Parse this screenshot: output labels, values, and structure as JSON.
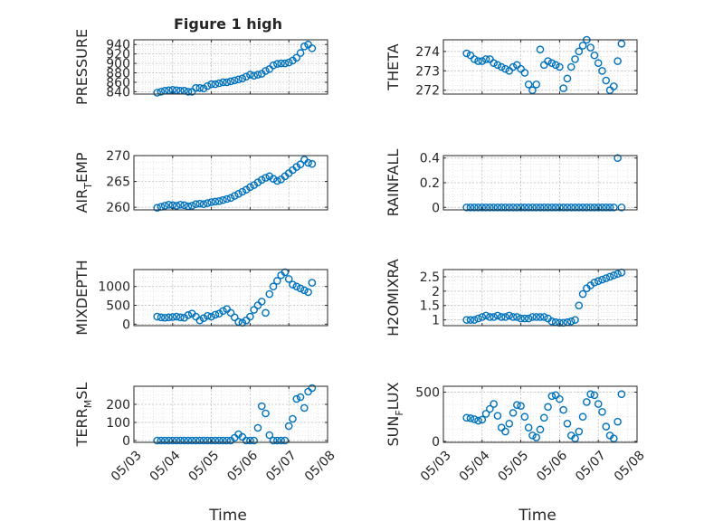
{
  "title": "Figure 1 high",
  "xlabel": "Time",
  "marker_color": "#0072BD",
  "chart_data": [
    {
      "type": "scatter",
      "id": "pressure",
      "ylabel_main": "PRESSURE",
      "ylabel_sub": "",
      "ylabel_tail": "",
      "ylim": [
        835,
        950
      ],
      "yticks": [
        840,
        860,
        880,
        900,
        920,
        940
      ],
      "ytick_labels": [
        "840",
        "860",
        "880",
        "900",
        "920",
        "940"
      ],
      "xlim": [
        0,
        5
      ],
      "xticks": [
        0,
        1,
        2,
        3,
        4,
        5
      ],
      "xtick_labels": [
        "05/03",
        "05/04",
        "05/05",
        "05/06",
        "05/07",
        "05/08"
      ],
      "x": [
        0.6,
        0.7,
        0.8,
        0.9,
        1.0,
        1.1,
        1.2,
        1.3,
        1.4,
        1.5,
        1.6,
        1.7,
        1.8,
        1.9,
        2.0,
        2.1,
        2.2,
        2.3,
        2.4,
        2.5,
        2.6,
        2.7,
        2.8,
        2.9,
        3.0,
        3.1,
        3.2,
        3.3,
        3.4,
        3.5,
        3.6,
        3.7,
        3.8,
        3.9,
        4.0,
        4.1,
        4.2,
        4.3,
        4.4,
        4.5,
        4.6
      ],
      "y": [
        838,
        840,
        842,
        843,
        844,
        843,
        842,
        842,
        840,
        840,
        848,
        848,
        847,
        852,
        856,
        856,
        858,
        860,
        860,
        862,
        864,
        866,
        868,
        872,
        876,
        874,
        876,
        878,
        884,
        888,
        896,
        899,
        900,
        900,
        902,
        906,
        912,
        922,
        936,
        940,
        932
      ]
    },
    {
      "type": "scatter",
      "id": "theta",
      "ylabel_main": "THETA",
      "ylabel_sub": "",
      "ylabel_tail": "",
      "ylim": [
        271.8,
        274.6
      ],
      "yticks": [
        272,
        273,
        274
      ],
      "ytick_labels": [
        "272",
        "273",
        "274"
      ],
      "xlim": [
        0,
        5
      ],
      "xticks": [
        0,
        1,
        2,
        3,
        4,
        5
      ],
      "xtick_labels": [
        "05/03",
        "05/04",
        "05/05",
        "05/06",
        "05/07",
        "05/08"
      ],
      "x": [
        0.6,
        0.7,
        0.8,
        0.9,
        1.0,
        1.1,
        1.2,
        1.3,
        1.4,
        1.5,
        1.6,
        1.7,
        1.8,
        1.9,
        2.0,
        2.1,
        2.2,
        2.3,
        2.4,
        2.5,
        2.6,
        2.7,
        2.8,
        2.9,
        3.0,
        3.1,
        3.2,
        3.3,
        3.4,
        3.5,
        3.6,
        3.7,
        3.8,
        3.9,
        4.0,
        4.1,
        4.2,
        4.3,
        4.4,
        4.5,
        4.6
      ],
      "y": [
        273.9,
        273.8,
        273.6,
        273.5,
        273.5,
        273.6,
        273.6,
        273.4,
        273.3,
        273.2,
        273.1,
        273.0,
        273.2,
        273.3,
        273.1,
        272.9,
        272.3,
        272.0,
        272.3,
        274.1,
        273.3,
        273.5,
        273.4,
        273.3,
        273.2,
        272.1,
        272.6,
        273.2,
        273.6,
        274.0,
        274.3,
        274.6,
        274.2,
        273.8,
        273.4,
        273.0,
        272.5,
        272.0,
        272.2,
        273.5,
        274.4
      ]
    },
    {
      "type": "scatter",
      "id": "air_temp",
      "ylabel_main": "AIR",
      "ylabel_sub": "T",
      "ylabel_tail": "EMP",
      "ylim": [
        259.5,
        270
      ],
      "yticks": [
        260,
        265,
        270
      ],
      "ytick_labels": [
        "260",
        "265",
        "270"
      ],
      "xlim": [
        0,
        5
      ],
      "xticks": [
        0,
        1,
        2,
        3,
        4,
        5
      ],
      "xtick_labels": [
        "05/03",
        "05/04",
        "05/05",
        "05/06",
        "05/07",
        "05/08"
      ],
      "x": [
        0.6,
        0.7,
        0.8,
        0.9,
        1.0,
        1.1,
        1.2,
        1.3,
        1.4,
        1.5,
        1.6,
        1.7,
        1.8,
        1.9,
        2.0,
        2.1,
        2.2,
        2.3,
        2.4,
        2.5,
        2.6,
        2.7,
        2.8,
        2.9,
        3.0,
        3.1,
        3.2,
        3.3,
        3.4,
        3.5,
        3.6,
        3.7,
        3.8,
        3.9,
        4.0,
        4.1,
        4.2,
        4.3,
        4.4,
        4.5,
        4.6
      ],
      "y": [
        259.9,
        260.1,
        260.3,
        260.5,
        260.4,
        260.3,
        260.5,
        260.4,
        260.2,
        260.3,
        260.6,
        260.7,
        260.6,
        260.8,
        261.0,
        261.1,
        261.2,
        261.4,
        261.6,
        261.8,
        262.2,
        262.6,
        263.0,
        263.4,
        263.9,
        264.3,
        264.8,
        265.3,
        265.7,
        266.0,
        265.5,
        265.1,
        265.4,
        266.0,
        266.6,
        267.2,
        267.8,
        268.3,
        269.2,
        268.6,
        268.4
      ]
    },
    {
      "type": "scatter",
      "id": "rainfall",
      "ylabel_main": "RAINFALL",
      "ylabel_sub": "",
      "ylabel_tail": "",
      "ylim": [
        -0.02,
        0.42
      ],
      "yticks": [
        0,
        0.2,
        0.4
      ],
      "ytick_labels": [
        "0",
        "0.2",
        "0.4"
      ],
      "xlim": [
        0,
        5
      ],
      "xticks": [
        0,
        1,
        2,
        3,
        4,
        5
      ],
      "xtick_labels": [
        "05/03",
        "05/04",
        "05/05",
        "05/06",
        "05/07",
        "05/08"
      ],
      "x": [
        0.6,
        0.7,
        0.8,
        0.9,
        1.0,
        1.1,
        1.2,
        1.3,
        1.4,
        1.5,
        1.6,
        1.7,
        1.8,
        1.9,
        2.0,
        2.1,
        2.2,
        2.3,
        2.4,
        2.5,
        2.6,
        2.7,
        2.8,
        2.9,
        3.0,
        3.1,
        3.2,
        3.3,
        3.4,
        3.5,
        3.6,
        3.7,
        3.8,
        3.9,
        4.0,
        4.1,
        4.2,
        4.3,
        4.4,
        4.5,
        4.6
      ],
      "y": [
        0,
        0,
        0,
        0,
        0,
        0,
        0,
        0,
        0,
        0,
        0,
        0,
        0,
        0,
        0,
        0,
        0,
        0,
        0,
        0,
        0,
        0,
        0,
        0,
        0,
        0,
        0,
        0,
        0,
        0,
        0,
        0,
        0,
        0,
        0,
        0,
        0,
        0,
        0,
        0.4,
        0
      ]
    },
    {
      "type": "scatter",
      "id": "mixdepth",
      "ylabel_main": "MIXDEPTH",
      "ylabel_sub": "",
      "ylabel_tail": "",
      "ylim": [
        -40,
        1450
      ],
      "yticks": [
        0,
        500,
        1000
      ],
      "ytick_labels": [
        "0",
        "500",
        "1000"
      ],
      "xlim": [
        0,
        5
      ],
      "xticks": [
        0,
        1,
        2,
        3,
        4,
        5
      ],
      "xtick_labels": [
        "05/03",
        "05/04",
        "05/05",
        "05/06",
        "05/07",
        "05/08"
      ],
      "x": [
        0.6,
        0.7,
        0.8,
        0.9,
        1.0,
        1.1,
        1.2,
        1.3,
        1.4,
        1.5,
        1.6,
        1.7,
        1.8,
        1.9,
        2.0,
        2.1,
        2.2,
        2.3,
        2.4,
        2.5,
        2.6,
        2.7,
        2.8,
        2.9,
        3.0,
        3.1,
        3.2,
        3.3,
        3.4,
        3.5,
        3.6,
        3.7,
        3.8,
        3.9,
        4.0,
        4.1,
        4.2,
        4.3,
        4.4,
        4.5,
        4.6
      ],
      "y": [
        200,
        180,
        170,
        180,
        190,
        200,
        180,
        170,
        240,
        280,
        200,
        100,
        160,
        220,
        200,
        250,
        280,
        350,
        400,
        300,
        180,
        60,
        40,
        100,
        200,
        380,
        500,
        600,
        300,
        800,
        1000,
        1150,
        1300,
        1380,
        1200,
        1050,
        1000,
        950,
        900,
        850,
        1100
      ]
    },
    {
      "type": "scatter",
      "id": "h2omixra",
      "ylabel_main": "H2OMIXRA",
      "ylabel_sub": "",
      "ylabel_tail": "",
      "ylim": [
        0.8,
        2.75
      ],
      "yticks": [
        1,
        1.5,
        2,
        2.5
      ],
      "ytick_labels": [
        "1",
        "1.5",
        "2",
        "2.5"
      ],
      "xlim": [
        0,
        5
      ],
      "xticks": [
        0,
        1,
        2,
        3,
        4,
        5
      ],
      "xtick_labels": [
        "05/03",
        "05/04",
        "05/05",
        "05/06",
        "05/07",
        "05/08"
      ],
      "x": [
        0.6,
        0.7,
        0.8,
        0.9,
        1.0,
        1.1,
        1.2,
        1.3,
        1.4,
        1.5,
        1.6,
        1.7,
        1.8,
        1.9,
        2.0,
        2.1,
        2.2,
        2.3,
        2.4,
        2.5,
        2.6,
        2.7,
        2.8,
        2.9,
        3.0,
        3.1,
        3.2,
        3.3,
        3.4,
        3.5,
        3.6,
        3.7,
        3.8,
        3.9,
        4.0,
        4.1,
        4.2,
        4.3,
        4.4,
        4.5,
        4.6
      ],
      "y": [
        1.0,
        1.0,
        1.0,
        1.05,
        1.1,
        1.15,
        1.1,
        1.1,
        1.15,
        1.1,
        1.1,
        1.15,
        1.1,
        1.1,
        1.05,
        1.05,
        1.05,
        1.1,
        1.1,
        1.1,
        1.1,
        1.05,
        0.95,
        0.92,
        0.9,
        0.9,
        0.92,
        0.95,
        1.0,
        1.5,
        1.9,
        2.1,
        2.2,
        2.3,
        2.35,
        2.4,
        2.45,
        2.5,
        2.55,
        2.6,
        2.65
      ]
    },
    {
      "type": "scatter",
      "id": "terr_msl",
      "ylabel_main": "TERR",
      "ylabel_sub": "M",
      "ylabel_tail": "SL",
      "ylim": [
        -10,
        300
      ],
      "yticks": [
        0,
        100,
        200
      ],
      "ytick_labels": [
        "0",
        "100",
        "200"
      ],
      "xlim": [
        0,
        5
      ],
      "xticks": [
        0,
        1,
        2,
        3,
        4,
        5
      ],
      "xtick_labels": [
        "05/03",
        "05/04",
        "05/05",
        "05/06",
        "05/07",
        "05/08"
      ],
      "x": [
        0.6,
        0.7,
        0.8,
        0.9,
        1.0,
        1.1,
        1.2,
        1.3,
        1.4,
        1.5,
        1.6,
        1.7,
        1.8,
        1.9,
        2.0,
        2.1,
        2.2,
        2.3,
        2.4,
        2.5,
        2.6,
        2.7,
        2.8,
        2.9,
        3.0,
        3.1,
        3.2,
        3.3,
        3.4,
        3.5,
        3.6,
        3.7,
        3.8,
        3.9,
        4.0,
        4.1,
        4.2,
        4.3,
        4.4,
        4.5,
        4.6
      ],
      "y": [
        0,
        0,
        0,
        0,
        0,
        0,
        0,
        0,
        0,
        0,
        0,
        0,
        0,
        0,
        0,
        0,
        0,
        0,
        0,
        0,
        15,
        35,
        20,
        0,
        0,
        0,
        70,
        190,
        150,
        30,
        0,
        0,
        0,
        0,
        80,
        120,
        230,
        240,
        180,
        270,
        290
      ]
    },
    {
      "type": "scatter",
      "id": "sun_flux",
      "ylabel_main": "SUN",
      "ylabel_sub": "F",
      "ylabel_tail": "LUX",
      "ylim": [
        -10,
        560
      ],
      "yticks": [
        0,
        500
      ],
      "ytick_labels": [
        "0",
        "500"
      ],
      "xlim": [
        0,
        5
      ],
      "xticks": [
        0,
        1,
        2,
        3,
        4,
        5
      ],
      "xtick_labels": [
        "05/03",
        "05/04",
        "05/05",
        "05/06",
        "05/07",
        "05/08"
      ],
      "x": [
        0.6,
        0.7,
        0.8,
        0.9,
        1.0,
        1.1,
        1.2,
        1.3,
        1.4,
        1.5,
        1.6,
        1.7,
        1.8,
        1.9,
        2.0,
        2.1,
        2.2,
        2.3,
        2.4,
        2.5,
        2.6,
        2.7,
        2.8,
        2.9,
        3.0,
        3.1,
        3.2,
        3.3,
        3.4,
        3.5,
        3.6,
        3.7,
        3.8,
        3.9,
        4.0,
        4.1,
        4.2,
        4.3,
        4.4,
        4.5,
        4.6
      ],
      "y": [
        240,
        235,
        225,
        210,
        220,
        280,
        330,
        380,
        260,
        140,
        100,
        180,
        290,
        370,
        360,
        250,
        140,
        60,
        40,
        120,
        240,
        350,
        460,
        470,
        430,
        320,
        180,
        60,
        30,
        100,
        250,
        400,
        480,
        470,
        380,
        300,
        150,
        60,
        30,
        200,
        480
      ]
    }
  ]
}
